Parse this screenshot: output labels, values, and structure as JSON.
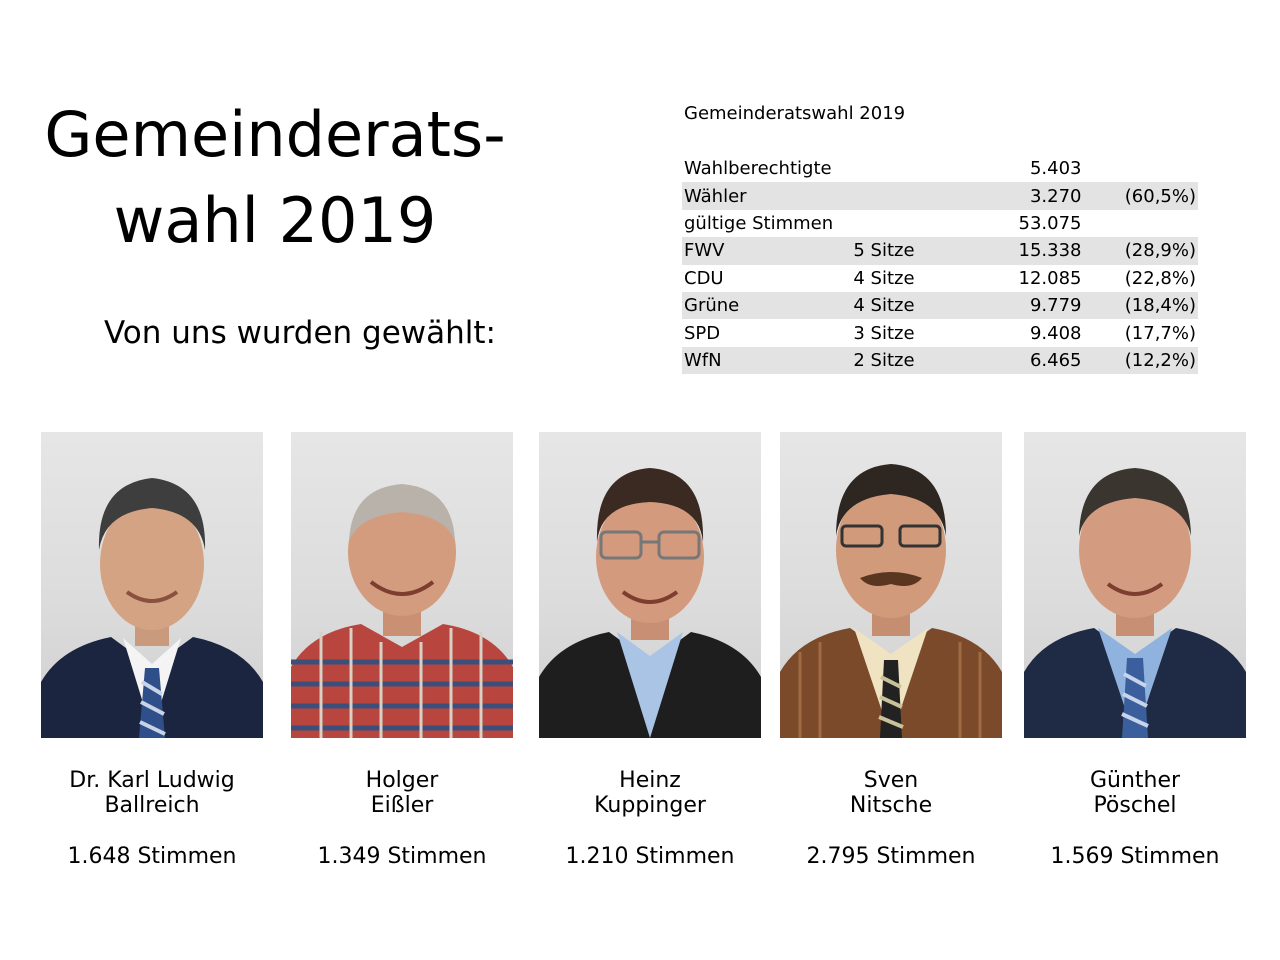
{
  "title": {
    "line1": "Gemeinderats-",
    "line2": "wahl 2019"
  },
  "subtitle": "Von uns wurden gewählt:",
  "results": {
    "heading": "Gemeinderatswahl 2019",
    "rows": [
      {
        "name": "Wahlberechtigte",
        "seats": "",
        "votes": "5.403",
        "pct": ""
      },
      {
        "name": "Wähler",
        "seats": "",
        "votes": "3.270",
        "pct": "(60,5%)"
      },
      {
        "name": "gültige Stimmen",
        "seats": "",
        "votes": "53.075",
        "pct": ""
      },
      {
        "name": "FWV",
        "seats": "5 Sitze",
        "votes": "15.338",
        "pct": "(28,9%)"
      },
      {
        "name": "CDU",
        "seats": "4 Sitze",
        "votes": "12.085",
        "pct": "(22,8%)"
      },
      {
        "name": "Grüne",
        "seats": "4 Sitze",
        "votes": "9.779",
        "pct": "(18,4%)"
      },
      {
        "name": "SPD",
        "seats": "3 Sitze",
        "votes": "9.408",
        "pct": "(17,7%)"
      },
      {
        "name": "WfN",
        "seats": "2 Sitze",
        "votes": "6.465",
        "pct": "(12,2%)"
      }
    ]
  },
  "candidates": [
    {
      "first": "Dr. Karl Ludwig",
      "last": "Ballreich",
      "votes": "1.648 Stimmen"
    },
    {
      "first": "Holger",
      "last": "Eißler",
      "votes": "1.349 Stimmen"
    },
    {
      "first": "Heinz",
      "last": "Kuppinger",
      "votes": "1.210 Stimmen"
    },
    {
      "first": "Sven",
      "last": "Nitsche",
      "votes": "2.795 Stimmen"
    },
    {
      "first": "Günther",
      "last": "Pöschel",
      "votes": "1.569 Stimmen"
    }
  ]
}
